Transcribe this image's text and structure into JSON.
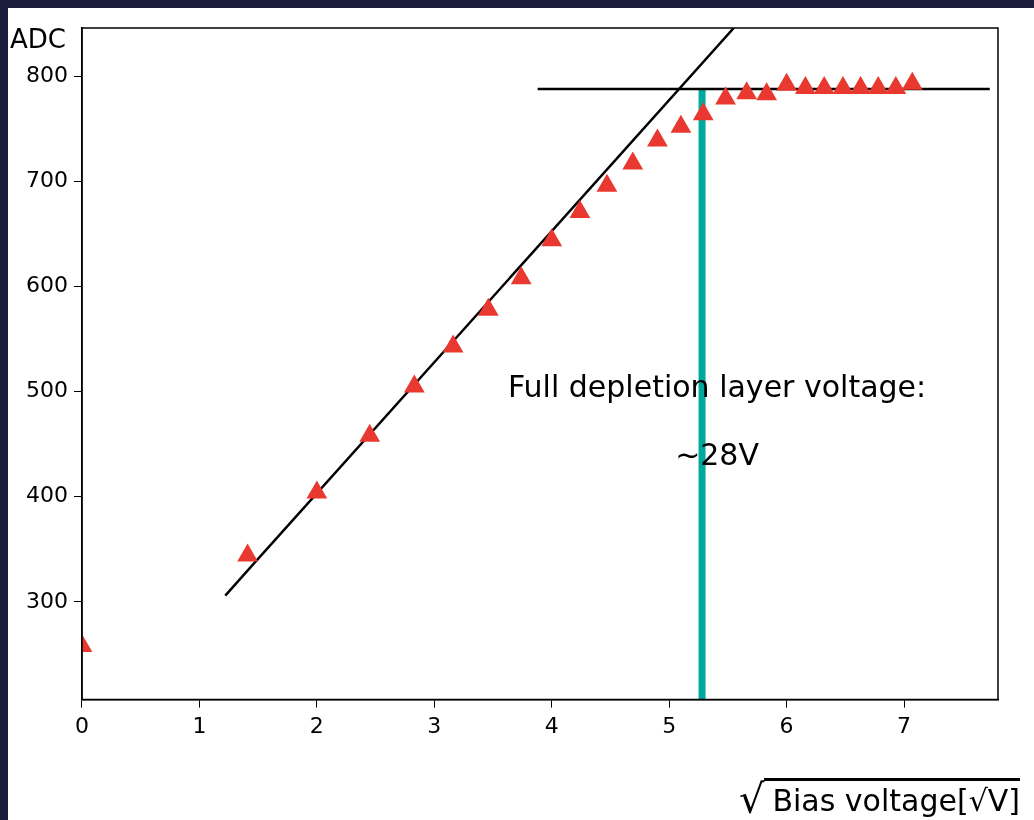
{
  "chart_data": {
    "type": "scatter",
    "xlabel": "√Bias voltage[√V]",
    "ylabel": "ADC",
    "xlim": [
      0,
      7.8
    ],
    "ylim": [
      207,
      846
    ],
    "xticks": [
      0,
      1,
      2,
      3,
      4,
      5,
      6,
      7
    ],
    "yticks": [
      300,
      400,
      500,
      600,
      700,
      800
    ],
    "grid": false,
    "legend": false,
    "series": [
      {
        "marker": "triangle",
        "color": "#e8382f",
        "x": [
          0,
          1.41,
          2,
          2.45,
          2.83,
          3.16,
          3.46,
          3.74,
          4,
          4.24,
          4.47,
          4.69,
          4.9,
          5.1,
          5.29,
          5.48,
          5.66,
          5.83,
          6,
          6.16,
          6.32,
          6.48,
          6.63,
          6.78,
          6.93,
          7.07
        ],
        "values": [
          258,
          344,
          404,
          458,
          505,
          543,
          578,
          608,
          644,
          671,
          696,
          717,
          739,
          752,
          764,
          779,
          784,
          783,
          792,
          789,
          789,
          789,
          789,
          789,
          789,
          793
        ]
      },
      {
        "type": "line",
        "marker": "none",
        "color": "#000000",
        "x": [
          1.22,
          5.55
        ],
        "values": [
          306,
          846
        ]
      },
      {
        "type": "line",
        "marker": "none",
        "color": "#000000",
        "x": [
          3.88,
          7.73
        ],
        "values": [
          788,
          788
        ]
      },
      {
        "type": "line",
        "marker": "none",
        "color": "#00a99d",
        "x": [
          5.28,
          5.28
        ],
        "values": [
          207,
          788
        ]
      }
    ],
    "annotations": [
      {
        "text": "Full depletion layer voltage:\n~28V",
        "x": 5.28,
        "y": 470
      }
    ]
  }
}
